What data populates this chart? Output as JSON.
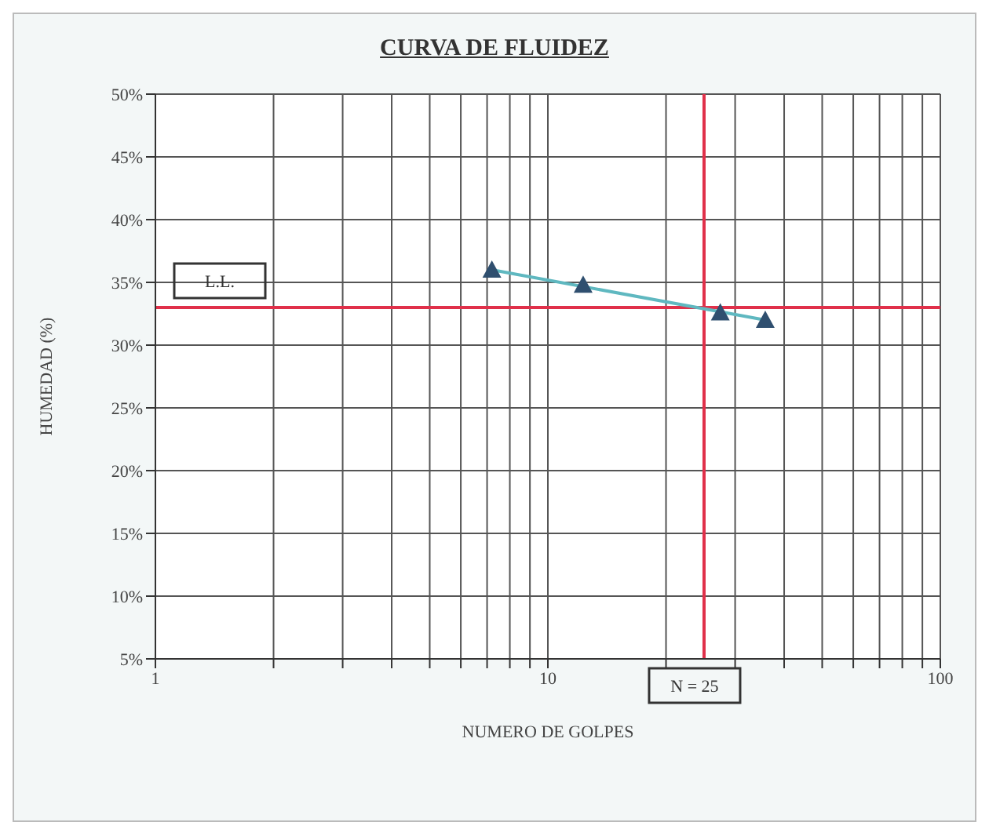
{
  "chart_data": {
    "type": "scatter",
    "title": "CURVA DE FLUIDEZ",
    "xlabel": "NUMERO DE GOLPES",
    "ylabel": "HUMEDAD (%)",
    "log": "x",
    "xlim": [
      1,
      100
    ],
    "ylim": [
      5,
      50
    ],
    "xticks": [
      1,
      {
        "value": 2,
        "label": null
      },
      {
        "value": 3,
        "label": null
      },
      {
        "value": 4,
        "label": null
      },
      {
        "value": 5,
        "label": null
      },
      {
        "value": 6,
        "label": null
      },
      {
        "value": 7,
        "label": null
      },
      {
        "value": 8,
        "label": null
      },
      {
        "value": 9,
        "label": null
      },
      10,
      {
        "value": 20,
        "label": null
      },
      {
        "value": 30,
        "label": null
      },
      {
        "value": 40,
        "label": null
      },
      {
        "value": 50,
        "label": null
      },
      {
        "value": 60,
        "label": null
      },
      {
        "value": 70,
        "label": null
      },
      {
        "value": 80,
        "label": null
      },
      {
        "value": 90,
        "label": null
      },
      100
    ],
    "yticks": [
      {
        "value": 5,
        "label": "5%"
      },
      {
        "value": 10,
        "label": "10%"
      },
      {
        "value": 15,
        "label": "15%"
      },
      {
        "value": 20,
        "label": "20%"
      },
      {
        "value": 25,
        "label": "25%"
      },
      {
        "value": 30,
        "label": "30%"
      },
      {
        "value": 35,
        "label": "35%"
      },
      {
        "value": 40,
        "label": "40%"
      },
      {
        "value": 45,
        "label": "45%"
      },
      {
        "value": 50,
        "label": "50%"
      }
    ],
    "grid": true,
    "marker": "triangle",
    "series": [
      {
        "type": "line",
        "color": "#5fb8c0",
        "x": [
          7.2,
          35.8
        ],
        "values": [
          36,
          32
        ],
        "marker": "none"
      },
      {
        "color": "#2f4f6f",
        "x": [
          7.2,
          12.3,
          27.5,
          35.8
        ],
        "values": [
          36,
          34.8,
          32.6,
          32
        ]
      }
    ],
    "ref_lines": [
      {
        "axis": "y",
        "value": 33,
        "label": "L.L.",
        "color": "#e0304a"
      },
      {
        "axis": "x",
        "value": 25,
        "label": "N = 25",
        "color": "#e0304a"
      }
    ]
  }
}
